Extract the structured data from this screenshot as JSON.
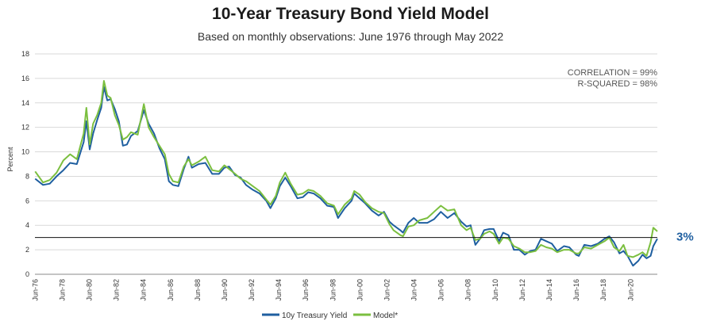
{
  "chart_data": {
    "type": "line",
    "title": "10-Year Treasury Bond Yield Model",
    "subtitle": "Based on monthly observations: June 1976 through May 2022",
    "ylabel": "Percent",
    "xlabel": "",
    "ylim": [
      0,
      18
    ],
    "yticks": [
      0,
      2,
      4,
      6,
      8,
      10,
      12,
      14,
      16,
      18
    ],
    "xlim": [
      1976.4,
      2022.4
    ],
    "xticks": [
      {
        "label": "Jun-76",
        "x": 1976.42
      },
      {
        "label": "Jun-78",
        "x": 1978.42
      },
      {
        "label": "Jun-80",
        "x": 1980.42
      },
      {
        "label": "Jun-82",
        "x": 1982.42
      },
      {
        "label": "Jun-84",
        "x": 1984.42
      },
      {
        "label": "Jun-86",
        "x": 1986.42
      },
      {
        "label": "Jun-88",
        "x": 1988.42
      },
      {
        "label": "Jun-90",
        "x": 1990.42
      },
      {
        "label": "Jun-92",
        "x": 1992.42
      },
      {
        "label": "Jun-94",
        "x": 1994.42
      },
      {
        "label": "Jun-96",
        "x": 1996.42
      },
      {
        "label": "Jun-98",
        "x": 1998.42
      },
      {
        "label": "Jun-00",
        "x": 2000.42
      },
      {
        "label": "Jun-02",
        "x": 2002.42
      },
      {
        "label": "Jun-04",
        "x": 2004.42
      },
      {
        "label": "Jun-06",
        "x": 2006.42
      },
      {
        "label": "Jun-08",
        "x": 2008.42
      },
      {
        "label": "Jun-10",
        "x": 2010.42
      },
      {
        "label": "Jun-12",
        "x": 2012.42
      },
      {
        "label": "Jun-14",
        "x": 2014.42
      },
      {
        "label": "Jun-16",
        "x": 2016.42
      },
      {
        "label": "Jun-18",
        "x": 2018.42
      },
      {
        "label": "Jun-20",
        "x": 2020.42
      }
    ],
    "grid": true,
    "legend_position": "bottom",
    "reference_line": {
      "y": 3,
      "label": "3%"
    },
    "annotations": [
      "CORRELATION = 99%",
      "R-SQUARED = 98%"
    ],
    "series": [
      {
        "name": "10y Treasury Yield",
        "color": "#1f5fa0",
        "x": [
          1976.42,
          1977.0,
          1977.5,
          1978.0,
          1978.5,
          1979.0,
          1979.5,
          1980.0,
          1980.2,
          1980.45,
          1980.7,
          1981.0,
          1981.3,
          1981.5,
          1981.75,
          1982.0,
          1982.3,
          1982.6,
          1982.9,
          1983.2,
          1983.5,
          1984.0,
          1984.45,
          1984.8,
          1985.2,
          1985.6,
          1986.0,
          1986.3,
          1986.6,
          1987.0,
          1987.4,
          1987.75,
          1988.0,
          1988.5,
          1989.0,
          1989.5,
          1990.0,
          1990.4,
          1990.75,
          1991.2,
          1991.6,
          1992.0,
          1992.5,
          1993.0,
          1993.5,
          1993.8,
          1994.2,
          1994.5,
          1994.9,
          1995.3,
          1995.8,
          1996.2,
          1996.6,
          1997.0,
          1997.5,
          1998.0,
          1998.5,
          1998.8,
          1999.3,
          1999.8,
          2000.0,
          2000.4,
          2000.8,
          2001.3,
          2001.8,
          2002.2,
          2002.6,
          2002.9,
          2003.4,
          2003.6,
          2004.0,
          2004.4,
          2004.8,
          2005.4,
          2005.9,
          2006.4,
          2006.9,
          2007.4,
          2007.9,
          2008.3,
          2008.6,
          2008.95,
          2009.3,
          2009.6,
          2010.0,
          2010.3,
          2010.7,
          2011.0,
          2011.4,
          2011.8,
          2012.2,
          2012.6,
          2013.0,
          2013.4,
          2013.8,
          2014.2,
          2014.6,
          2015.0,
          2015.5,
          2015.9,
          2016.4,
          2016.6,
          2017.0,
          2017.5,
          2018.0,
          2018.5,
          2018.85,
          2019.2,
          2019.6,
          2019.9,
          2020.2,
          2020.6,
          2021.0,
          2021.3,
          2021.6,
          2021.9,
          2022.1,
          2022.4
        ],
        "values": [
          7.8,
          7.3,
          7.4,
          8.0,
          8.5,
          9.1,
          9.0,
          10.8,
          12.5,
          10.2,
          11.5,
          12.6,
          13.6,
          15.3,
          14.2,
          14.3,
          13.5,
          12.5,
          10.5,
          10.6,
          11.3,
          11.7,
          13.4,
          12.3,
          11.5,
          10.3,
          9.4,
          7.6,
          7.3,
          7.2,
          8.6,
          9.6,
          8.7,
          9.0,
          9.1,
          8.2,
          8.2,
          8.7,
          8.8,
          8.1,
          7.9,
          7.3,
          6.9,
          6.6,
          6.0,
          5.4,
          6.2,
          7.2,
          7.9,
          7.2,
          6.2,
          6.3,
          6.7,
          6.6,
          6.2,
          5.6,
          5.5,
          4.6,
          5.4,
          6.0,
          6.6,
          6.2,
          5.8,
          5.2,
          4.8,
          5.1,
          4.3,
          4.0,
          3.6,
          3.4,
          4.2,
          4.6,
          4.2,
          4.2,
          4.5,
          5.1,
          4.6,
          5.0,
          4.3,
          3.9,
          4.0,
          2.4,
          2.9,
          3.6,
          3.7,
          3.7,
          2.7,
          3.4,
          3.2,
          2.0,
          2.0,
          1.6,
          1.9,
          2.0,
          2.9,
          2.7,
          2.5,
          1.9,
          2.3,
          2.2,
          1.6,
          1.5,
          2.4,
          2.3,
          2.5,
          2.9,
          3.1,
          2.6,
          1.7,
          1.9,
          1.5,
          0.7,
          1.1,
          1.6,
          1.3,
          1.5,
          2.3,
          2.9
        ]
      },
      {
        "name": "Model*",
        "color": "#7bbf3f",
        "x": [
          1976.42,
          1977.0,
          1977.5,
          1978.0,
          1978.5,
          1979.0,
          1979.5,
          1980.0,
          1980.2,
          1980.45,
          1980.7,
          1981.0,
          1981.3,
          1981.5,
          1981.75,
          1982.0,
          1982.3,
          1982.6,
          1982.9,
          1983.2,
          1983.5,
          1984.0,
          1984.45,
          1984.8,
          1985.2,
          1985.6,
          1986.0,
          1986.3,
          1986.6,
          1987.0,
          1987.4,
          1987.75,
          1988.0,
          1988.5,
          1989.0,
          1989.5,
          1990.0,
          1990.4,
          1990.75,
          1991.2,
          1991.6,
          1992.0,
          1992.5,
          1993.0,
          1993.5,
          1993.8,
          1994.2,
          1994.5,
          1994.9,
          1995.3,
          1995.8,
          1996.2,
          1996.6,
          1997.0,
          1997.5,
          1998.0,
          1998.5,
          1998.8,
          1999.3,
          1999.8,
          2000.0,
          2000.4,
          2000.8,
          2001.3,
          2001.8,
          2002.2,
          2002.6,
          2002.9,
          2003.4,
          2003.6,
          2004.0,
          2004.4,
          2004.8,
          2005.4,
          2005.9,
          2006.4,
          2006.9,
          2007.4,
          2007.9,
          2008.3,
          2008.6,
          2008.95,
          2009.3,
          2009.6,
          2010.0,
          2010.3,
          2010.7,
          2011.0,
          2011.4,
          2011.8,
          2012.2,
          2012.6,
          2013.0,
          2013.4,
          2013.8,
          2014.2,
          2014.6,
          2015.0,
          2015.5,
          2015.9,
          2016.4,
          2016.6,
          2017.0,
          2017.5,
          2018.0,
          2018.5,
          2018.85,
          2019.2,
          2019.6,
          2019.9,
          2020.2,
          2020.6,
          2021.0,
          2021.3,
          2021.6,
          2021.9,
          2022.1,
          2022.4
        ],
        "values": [
          8.4,
          7.5,
          7.7,
          8.3,
          9.3,
          9.8,
          9.4,
          11.5,
          13.6,
          10.6,
          12.3,
          13.0,
          14.0,
          15.8,
          14.6,
          14.4,
          13.0,
          12.2,
          11.0,
          11.2,
          11.6,
          11.4,
          13.9,
          12.0,
          11.2,
          10.5,
          9.8,
          8.2,
          7.6,
          7.5,
          8.8,
          9.4,
          8.9,
          9.2,
          9.6,
          8.5,
          8.4,
          8.9,
          8.6,
          8.2,
          7.8,
          7.6,
          7.2,
          6.8,
          6.1,
          5.7,
          6.4,
          7.5,
          8.3,
          7.4,
          6.5,
          6.6,
          6.9,
          6.8,
          6.4,
          5.8,
          5.6,
          4.9,
          5.7,
          6.2,
          6.8,
          6.5,
          5.9,
          5.4,
          5.1,
          5.0,
          4.1,
          3.6,
          3.2,
          3.1,
          3.9,
          4.0,
          4.4,
          4.6,
          5.1,
          5.6,
          5.2,
          5.3,
          4.0,
          3.6,
          3.8,
          2.8,
          2.9,
          3.3,
          3.5,
          3.3,
          2.5,
          3.0,
          2.9,
          2.3,
          2.1,
          1.8,
          1.8,
          1.9,
          2.4,
          2.2,
          2.1,
          1.8,
          2.0,
          2.0,
          1.7,
          1.7,
          2.2,
          2.1,
          2.4,
          2.7,
          3.0,
          2.2,
          1.9,
          2.4,
          1.5,
          1.4,
          1.6,
          1.8,
          1.5,
          2.6,
          3.8,
          3.5
        ]
      }
    ]
  }
}
